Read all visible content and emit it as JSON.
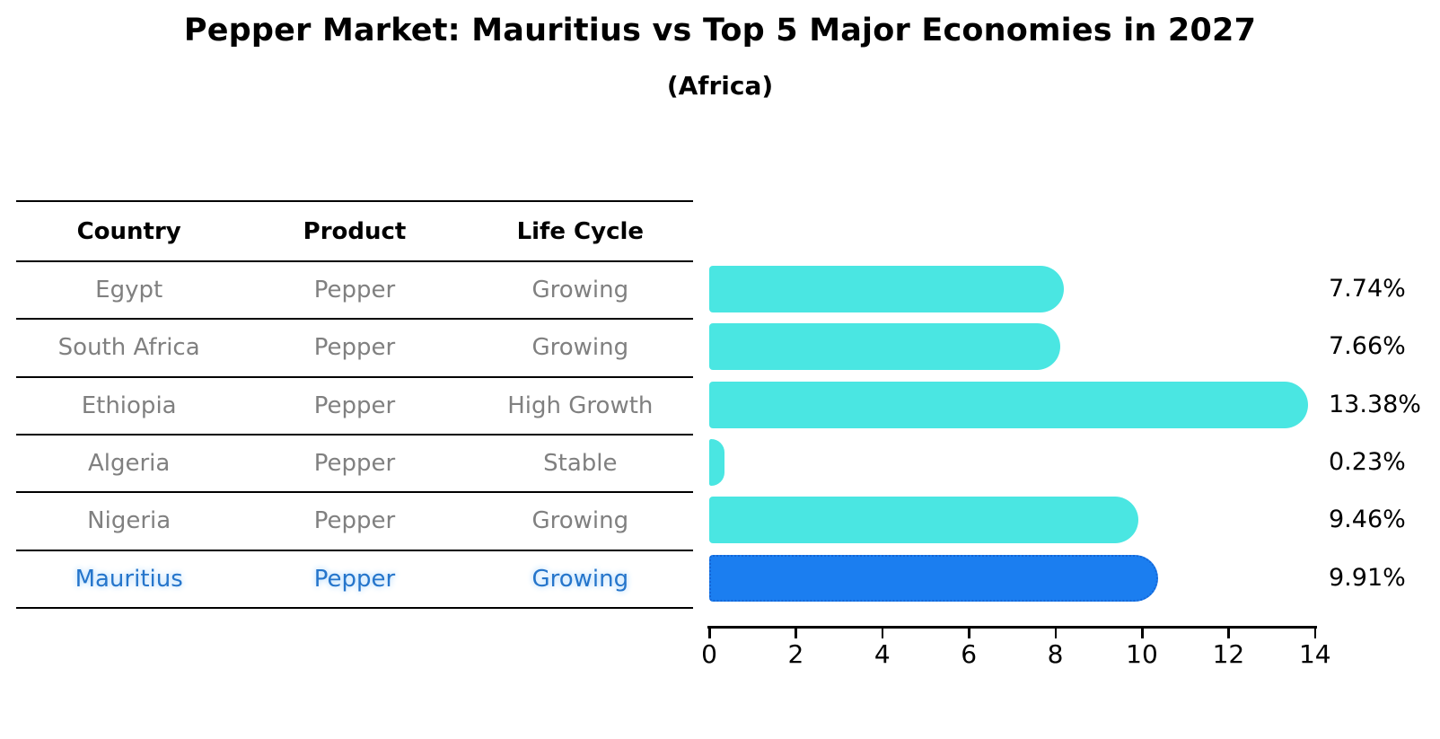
{
  "title": "Pepper Market: Mauritius vs Top 5 Major Economies in 2027",
  "subtitle": "(Africa)",
  "table": {
    "headers": [
      "Country",
      "Product",
      "Life Cycle"
    ],
    "rows": [
      {
        "country": "Egypt",
        "product": "Pepper",
        "life_cycle": "Growing",
        "highlight": false
      },
      {
        "country": "South Africa",
        "product": "Pepper",
        "life_cycle": "Growing",
        "highlight": false
      },
      {
        "country": "Ethiopia",
        "product": "Pepper",
        "life_cycle": "High Growth",
        "highlight": false
      },
      {
        "country": "Algeria",
        "product": "Pepper",
        "life_cycle": "Stable",
        "highlight": false
      },
      {
        "country": "Nigeria",
        "product": "Pepper",
        "life_cycle": "Growing",
        "highlight": false
      },
      {
        "country": "Mauritius",
        "product": "Pepper",
        "life_cycle": "Growing",
        "highlight": true
      }
    ]
  },
  "chart_data": {
    "type": "bar",
    "orientation": "horizontal",
    "title": "Pepper Market: Mauritius vs Top 5 Major Economies in 2027",
    "subtitle": "(Africa)",
    "categories": [
      "Egypt",
      "South Africa",
      "Ethiopia",
      "Algeria",
      "Nigeria",
      "Mauritius"
    ],
    "values": [
      7.74,
      7.66,
      13.38,
      0.23,
      9.46,
      9.91
    ],
    "value_labels": [
      "7.74%",
      "7.66%",
      "13.38%",
      "0.23%",
      "9.46%",
      "9.91%"
    ],
    "xlabel": "",
    "ylabel": "",
    "xlim": [
      0,
      14
    ],
    "x_ticks": [
      0,
      2,
      4,
      6,
      8,
      10,
      12,
      14
    ],
    "grid": false,
    "legend": false,
    "highlight_index": 5
  },
  "colors": {
    "bar_default": "#4ae6e2",
    "bar_highlight": "#1b7ef0",
    "bar_highlight_border": "#1566d6",
    "highlight_text": "#2575cb",
    "row_text": "#808080",
    "header_text": "#000000",
    "line": "#000000"
  }
}
